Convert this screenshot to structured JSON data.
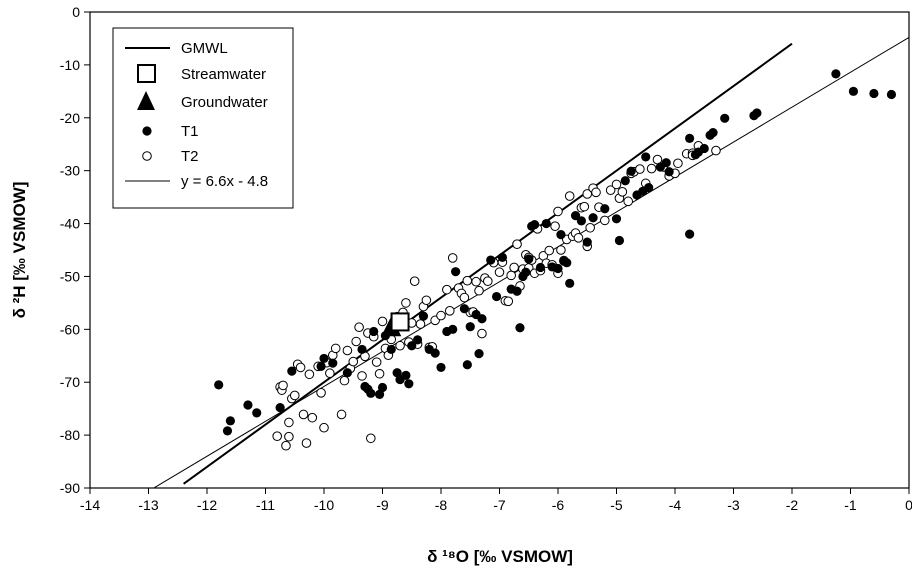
{
  "chart_data": {
    "type": "scatter",
    "xlabel": "δ ¹⁸O [‰ VSMOW]",
    "ylabel": "δ ²H [‰ VSMOW]",
    "xlim": [
      -14,
      0
    ],
    "ylim": [
      -90,
      0
    ],
    "xticks": [
      "-14",
      "-13",
      "-12",
      "-11",
      "-10",
      "-9",
      "-8",
      "-7",
      "-6",
      "-5",
      "-4",
      "-3",
      "-2",
      "-1",
      "0"
    ],
    "yticks": [
      "0",
      "-10",
      "-20",
      "-30",
      "-40",
      "-50",
      "-60",
      "-70",
      "-80",
      "-90"
    ],
    "grid": false,
    "legend_position": "top-left",
    "legend": [
      {
        "label": "GMWL",
        "symbol": "thick-line"
      },
      {
        "label": "Streamwater",
        "symbol": "open-square"
      },
      {
        "label": "Groundwater",
        "symbol": "filled-triangle"
      },
      {
        "label": "T1",
        "symbol": "filled-circle"
      },
      {
        "label": "T2",
        "symbol": "open-circle"
      },
      {
        "label": "y = 6.6x - 4.8",
        "symbol": "thin-line"
      }
    ],
    "lines": [
      {
        "name": "GMWL",
        "slope": 8,
        "intercept": 10,
        "x_range": [
          -12.4,
          -2.0
        ]
      },
      {
        "name": "y = 6.6x - 4.8",
        "slope": 6.6,
        "intercept": -4.8,
        "x_range": [
          -12.9,
          0.0
        ]
      }
    ],
    "streamwater": [
      {
        "x": -8.7,
        "y": -58.6
      }
    ],
    "groundwater": [
      {
        "x": -8.85,
        "y": -59.6
      }
    ],
    "series": [
      {
        "name": "T1",
        "x": [
          -11.8,
          -11.65,
          -11.6,
          -11.3,
          -11.15,
          -10.75,
          -10.55,
          -10.05,
          -10.0,
          -9.85,
          -9.6,
          -9.35,
          -9.3,
          -9.25,
          -9.2,
          -9.15,
          -9.05,
          -9.0,
          -8.95,
          -8.85,
          -8.75,
          -8.7,
          -8.6,
          -8.55,
          -8.5,
          -8.4,
          -8.3,
          -8.2,
          -8.1,
          -8.0,
          -7.9,
          -7.8,
          -7.75,
          -7.6,
          -7.55,
          -7.5,
          -7.4,
          -7.35,
          -7.3,
          -7.15,
          -7.05,
          -6.95,
          -6.8,
          -6.7,
          -6.65,
          -6.6,
          -6.55,
          -6.5,
          -6.45,
          -6.4,
          -6.3,
          -6.2,
          -6.1,
          -6.0,
          -5.95,
          -5.9,
          -5.85,
          -5.8,
          -5.7,
          -5.6,
          -5.5,
          -5.4,
          -5.2,
          -5.0,
          -4.95,
          -4.85,
          -4.75,
          -4.65,
          -4.55,
          -4.5,
          -4.45,
          -4.25,
          -4.15,
          -4.1,
          -3.75,
          -3.75,
          -3.65,
          -3.6,
          -3.5,
          -3.4,
          -3.35,
          -3.15,
          -2.65,
          -2.6,
          -1.25,
          -0.95,
          -0.6,
          -0.3
        ],
        "y": [
          -70.5,
          -79.2,
          -77.3,
          -74.3,
          -75.8,
          -74.8,
          -67.9,
          -67.0,
          -65.5,
          -66.4,
          -68.2,
          -63.8,
          -70.8,
          -71.3,
          -72.1,
          -60.4,
          -72.3,
          -71.0,
          -61.2,
          -63.8,
          -68.2,
          -69.5,
          -68.7,
          -70.3,
          -63.1,
          -62.0,
          -57.5,
          -63.8,
          -64.5,
          -67.2,
          -60.4,
          -60.0,
          -49.1,
          -56.1,
          -66.7,
          -59.5,
          -57.2,
          -64.6,
          -58.0,
          -46.9,
          -53.8,
          -46.4,
          -52.4,
          -52.8,
          -59.7,
          -50.0,
          -49.2,
          -46.7,
          -40.5,
          -40.2,
          -48.3,
          -40.0,
          -48.2,
          -48.5,
          -42.1,
          -47.1,
          -47.4,
          -51.3,
          -38.5,
          -39.5,
          -43.5,
          -38.9,
          -37.2,
          -39.1,
          -43.2,
          -31.9,
          -30.1,
          -34.6,
          -33.9,
          -27.4,
          -33.2,
          -29.3,
          -28.5,
          -30.2,
          -42.0,
          -23.9,
          -27.0,
          -26.5,
          -25.8,
          -23.3,
          -22.8,
          -20.1,
          -19.6,
          -19.1,
          -11.7,
          -15.0,
          -15.4,
          -15.6
        ]
      },
      {
        "name": "T2",
        "x": [
          -10.8,
          -10.75,
          -10.72,
          -10.7,
          -10.65,
          -10.6,
          -10.6,
          -10.55,
          -10.5,
          -10.45,
          -10.4,
          -10.35,
          -10.3,
          -10.25,
          -10.2,
          -10.1,
          -10.05,
          -10.0,
          -9.95,
          -9.9,
          -9.85,
          -9.8,
          -9.7,
          -9.65,
          -9.6,
          -9.55,
          -9.5,
          -9.45,
          -9.4,
          -9.35,
          -9.3,
          -9.25,
          -9.2,
          -9.15,
          -9.1,
          -9.05,
          -9.0,
          -8.95,
          -8.9,
          -8.85,
          -8.8,
          -8.75,
          -8.7,
          -8.65,
          -8.6,
          -8.55,
          -8.5,
          -8.45,
          -8.4,
          -8.35,
          -8.3,
          -8.25,
          -8.2,
          -8.15,
          -8.1,
          -8.0,
          -7.9,
          -7.85,
          -7.8,
          -7.7,
          -7.65,
          -7.6,
          -7.55,
          -7.5,
          -7.45,
          -7.4,
          -7.35,
          -7.3,
          -7.25,
          -7.2,
          -7.1,
          -7.0,
          -6.95,
          -6.9,
          -6.85,
          -6.8,
          -6.75,
          -6.7,
          -6.65,
          -6.6,
          -6.55,
          -6.5,
          -6.45,
          -6.4,
          -6.35,
          -6.3,
          -6.25,
          -6.2,
          -6.15,
          -6.1,
          -6.05,
          -6.0,
          -5.95,
          -5.9,
          -5.85,
          -5.8,
          -5.75,
          -5.7,
          -5.65,
          -5.6,
          -5.55,
          -5.5,
          -5.45,
          -5.4,
          -5.35,
          -5.3,
          -5.2,
          -5.1,
          -5.0,
          -4.95,
          -4.9,
          -4.8,
          -4.75,
          -4.7,
          -4.6,
          -4.5,
          -4.4,
          -4.3,
          -4.2,
          -4.1,
          -3.95,
          -3.8,
          -3.7,
          -3.6,
          -3.3,
          -3.7,
          -4.0,
          -5.5,
          -6.0,
          -6.5
        ],
        "y": [
          -80.2,
          -70.9,
          -71.5,
          -70.6,
          -82.0,
          -80.3,
          -77.6,
          -73.1,
          -72.5,
          -66.6,
          -67.2,
          -76.1,
          -81.5,
          -68.5,
          -76.7,
          -67.0,
          -72.0,
          -78.6,
          -66.3,
          -68.3,
          -64.9,
          -63.6,
          -76.1,
          -69.7,
          -64.0,
          -67.4,
          -66.1,
          -62.3,
          -59.6,
          -68.8,
          -65.1,
          -60.7,
          -80.6,
          -61.4,
          -66.2,
          -68.4,
          -58.5,
          -63.6,
          -64.9,
          -61.9,
          -60.2,
          -57.6,
          -63.1,
          -56.8,
          -55.0,
          -62.4,
          -58.8,
          -50.9,
          -62.8,
          -59.0,
          -55.7,
          -54.5,
          -63.4,
          -63.3,
          -58.3,
          -57.4,
          -52.5,
          -56.5,
          -46.5,
          -52.2,
          -53.2,
          -54.0,
          -50.8,
          -56.8,
          -56.7,
          -51.0,
          -52.7,
          -60.8,
          -50.3,
          -50.9,
          -47.4,
          -49.2,
          -47.3,
          -54.6,
          -54.7,
          -49.8,
          -48.3,
          -43.9,
          -51.8,
          -48.6,
          -45.9,
          -48.4,
          -46.9,
          -49.4,
          -41.0,
          -48.9,
          -46.1,
          -47.5,
          -45.1,
          -47.8,
          -40.5,
          -37.7,
          -45.0,
          -47.0,
          -43.0,
          -34.8,
          -42.4,
          -41.8,
          -42.7,
          -37.0,
          -36.8,
          -34.4,
          -40.8,
          -33.3,
          -34.1,
          -36.9,
          -39.4,
          -33.7,
          -32.6,
          -35.2,
          -34.0,
          -35.8,
          -30.5,
          -30.2,
          -29.7,
          -32.4,
          -29.6,
          -27.9,
          -29.3,
          -31.0,
          -28.6,
          -26.8,
          -26.7,
          -25.3,
          -26.2,
          -27.1,
          -30.5,
          -44.3,
          -49.4,
          -46.4
        ]
      }
    ]
  }
}
